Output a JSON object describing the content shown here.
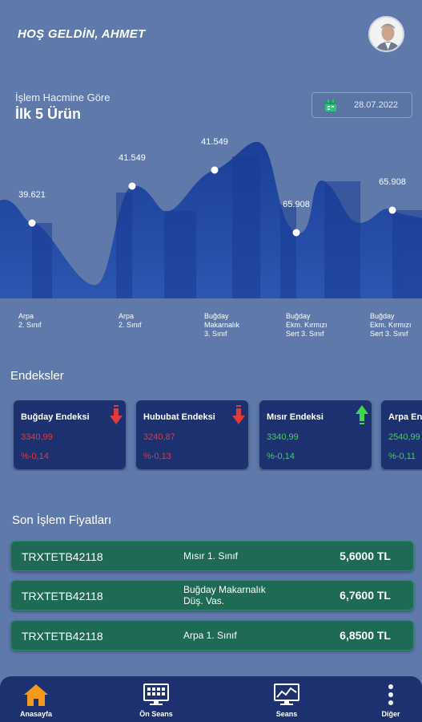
{
  "header": {
    "greeting": "HOŞ GELDİN, AHMET"
  },
  "chart_section": {
    "subtitle": "İşlem Hacmine Göre",
    "title": "İlk 5 Ürün",
    "date": "28.07.2022"
  },
  "chart_data": {
    "type": "area",
    "categories": [
      "Arpa\n2. Sınıf",
      "Arpa\n2. Sınıf",
      "Buğday\nMakarnalık\n3. Sınıf",
      "Buğday\nEkm. Kırmızı\nSert 3. Sınıf",
      "Buğday\nEkm. Kırmızı\nSert 3. Sınıf"
    ],
    "point_labels": [
      "39.621",
      "41.549",
      "41.549",
      "65.908",
      "65.908"
    ],
    "colors": {
      "area_top": "#1b3f96",
      "area_bottom": "#2c56b2",
      "fill_strong": "#1a3c94"
    }
  },
  "indices_section": {
    "title": "Endeksler",
    "cards": [
      {
        "name": "Buğday Endeksi",
        "value": "3340,99",
        "change": "%-0,14",
        "trend": "down"
      },
      {
        "name": "Hububat Endeksi",
        "value": "3240,87",
        "change": "%-0,13",
        "trend": "down"
      },
      {
        "name": "Mısır  Endeksi",
        "value": "3340,99",
        "change": "%-0,14",
        "trend": "up"
      },
      {
        "name": "Arpa  Endeksi",
        "value": "2540,99",
        "change": "%-0,11",
        "trend": "up"
      }
    ]
  },
  "trades_section": {
    "title": "Son İşlem Fiyatları",
    "rows": [
      {
        "code": "TRXTETB42118",
        "product": "Mısır 1. Sınıf",
        "price": "5,6000 TL"
      },
      {
        "code": "TRXTETB42118",
        "product": "Buğday Makarnalık\nDüş. Vas.",
        "price": "6,7600 TL"
      },
      {
        "code": "TRXTETB42118",
        "product": "Arpa 1. Sınıf",
        "price": "6,8500 TL"
      }
    ]
  },
  "bottom_nav": {
    "items": [
      {
        "label": "Anasayfa",
        "icon": "home-icon",
        "color": "#f39a1e"
      },
      {
        "label": "Ön Seans",
        "icon": "monitor-icon"
      },
      {
        "label": "Seans",
        "icon": "chart-monitor-icon"
      },
      {
        "label": "Diğer",
        "icon": "more-vertical-icon"
      }
    ]
  }
}
